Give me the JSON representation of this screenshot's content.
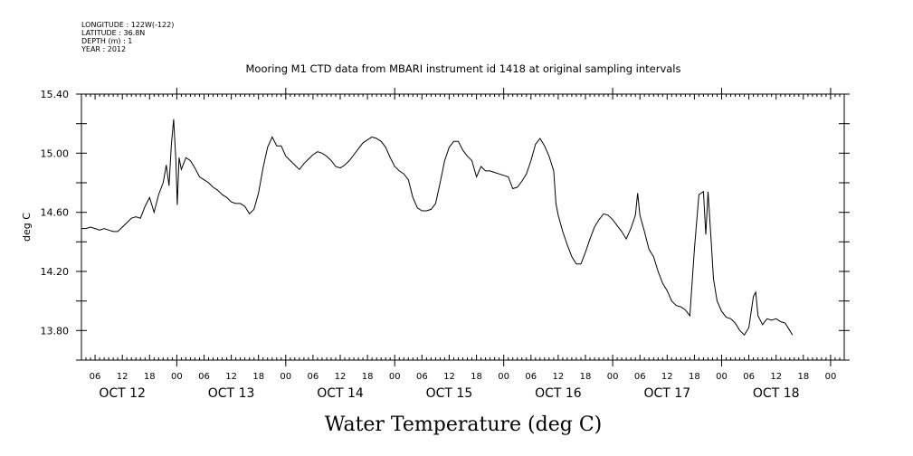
{
  "header": {
    "longitude": "LONGITUDE : 122W(-122)",
    "latitude": "LATITUDE : 36.8N",
    "depth": "DEPTH (m) : 1",
    "year": "YEAR : 2012"
  },
  "chart_data": {
    "type": "line",
    "title": "Mooring M1 CTD data from MBARI instrument id 1418 at original sampling intervals",
    "xlabel": "Water Temperature (deg C)",
    "ylabel": "deg C",
    "x_unit": "hours",
    "xlim": [
      0,
      168
    ],
    "ylim": [
      13.6,
      15.4
    ],
    "yticks": [
      13.8,
      14.2,
      14.6,
      15.0,
      15.4
    ],
    "ytick_labels": [
      "13.80",
      "14.20",
      "14.60",
      "15.00",
      "15.40"
    ],
    "hour_ticks": [
      {
        "t": 3,
        "label": "06"
      },
      {
        "t": 9,
        "label": "12"
      },
      {
        "t": 15,
        "label": "18"
      },
      {
        "t": 21,
        "label": "00"
      },
      {
        "t": 27,
        "label": "06"
      },
      {
        "t": 33,
        "label": "12"
      },
      {
        "t": 39,
        "label": "18"
      },
      {
        "t": 45,
        "label": "00"
      },
      {
        "t": 51,
        "label": "06"
      },
      {
        "t": 57,
        "label": "12"
      },
      {
        "t": 63,
        "label": "18"
      },
      {
        "t": 69,
        "label": "00"
      },
      {
        "t": 75,
        "label": "06"
      },
      {
        "t": 81,
        "label": "12"
      },
      {
        "t": 87,
        "label": "18"
      },
      {
        "t": 93,
        "label": "00"
      },
      {
        "t": 99,
        "label": "06"
      },
      {
        "t": 105,
        "label": "12"
      },
      {
        "t": 111,
        "label": "18"
      },
      {
        "t": 117,
        "label": "00"
      },
      {
        "t": 123,
        "label": "06"
      },
      {
        "t": 129,
        "label": "12"
      },
      {
        "t": 135,
        "label": "18"
      },
      {
        "t": 141,
        "label": "00"
      },
      {
        "t": 147,
        "label": "06"
      },
      {
        "t": 153,
        "label": "12"
      },
      {
        "t": 159,
        "label": "18"
      },
      {
        "t": 165,
        "label": "00"
      }
    ],
    "day_labels": [
      {
        "t": 9,
        "label": "OCT 12"
      },
      {
        "t": 33,
        "label": "OCT 13"
      },
      {
        "t": 57,
        "label": "OCT 14"
      },
      {
        "t": 81,
        "label": "OCT 15"
      },
      {
        "t": 105,
        "label": "OCT 16"
      },
      {
        "t": 129,
        "label": "OCT 17"
      },
      {
        "t": 153,
        "label": "OCT 18"
      }
    ],
    "series": [
      {
        "points": [
          [
            0,
            14.49
          ],
          [
            1,
            14.49
          ],
          [
            2,
            14.5
          ],
          [
            3,
            14.49
          ],
          [
            4,
            14.48
          ],
          [
            5,
            14.49
          ],
          [
            6,
            14.48
          ],
          [
            7,
            14.47
          ],
          [
            8,
            14.47
          ],
          [
            9,
            14.5
          ],
          [
            10,
            14.53
          ],
          [
            11,
            14.56
          ],
          [
            12,
            14.57
          ],
          [
            13,
            14.56
          ],
          [
            14,
            14.64
          ],
          [
            15,
            14.7
          ],
          [
            16,
            14.6
          ],
          [
            17,
            14.72
          ],
          [
            18,
            14.8
          ],
          [
            18.7,
            14.92
          ],
          [
            19.3,
            14.78
          ],
          [
            19.8,
            15.06
          ],
          [
            20.3,
            15.23
          ],
          [
            20.8,
            14.95
          ],
          [
            21.1,
            14.65
          ],
          [
            21.5,
            14.97
          ],
          [
            22,
            14.89
          ],
          [
            23,
            14.97
          ],
          [
            24,
            14.95
          ],
          [
            25,
            14.9
          ],
          [
            26,
            14.84
          ],
          [
            27,
            14.82
          ],
          [
            28,
            14.8
          ],
          [
            29,
            14.77
          ],
          [
            30,
            14.75
          ],
          [
            31,
            14.72
          ],
          [
            32,
            14.7
          ],
          [
            33,
            14.67
          ],
          [
            34,
            14.66
          ],
          [
            35,
            14.66
          ],
          [
            36,
            14.64
          ],
          [
            37,
            14.59
          ],
          [
            38,
            14.62
          ],
          [
            39,
            14.73
          ],
          [
            40,
            14.9
          ],
          [
            41,
            15.04
          ],
          [
            42,
            15.11
          ],
          [
            43,
            15.05
          ],
          [
            44,
            15.05
          ],
          [
            45,
            14.98
          ],
          [
            46,
            14.95
          ],
          [
            47,
            14.92
          ],
          [
            48,
            14.89
          ],
          [
            49,
            14.93
          ],
          [
            50,
            14.96
          ],
          [
            51,
            14.99
          ],
          [
            52,
            15.01
          ],
          [
            53,
            15.0
          ],
          [
            54,
            14.98
          ],
          [
            55,
            14.95
          ],
          [
            56,
            14.91
          ],
          [
            57,
            14.9
          ],
          [
            58,
            14.92
          ],
          [
            59,
            14.95
          ],
          [
            60,
            14.99
          ],
          [
            61,
            15.03
          ],
          [
            62,
            15.07
          ],
          [
            63,
            15.09
          ],
          [
            64,
            15.11
          ],
          [
            65,
            15.1
          ],
          [
            66,
            15.08
          ],
          [
            67,
            15.04
          ],
          [
            68,
            14.97
          ],
          [
            69,
            14.91
          ],
          [
            70,
            14.88
          ],
          [
            71,
            14.86
          ],
          [
            72,
            14.82
          ],
          [
            73,
            14.7
          ],
          [
            74,
            14.63
          ],
          [
            75,
            14.61
          ],
          [
            76,
            14.61
          ],
          [
            77,
            14.62
          ],
          [
            78,
            14.66
          ],
          [
            79,
            14.8
          ],
          [
            80,
            14.95
          ],
          [
            81,
            15.04
          ],
          [
            82,
            15.08
          ],
          [
            83,
            15.08
          ],
          [
            84,
            15.02
          ],
          [
            85,
            14.98
          ],
          [
            86,
            14.95
          ],
          [
            87,
            14.84
          ],
          [
            88,
            14.91
          ],
          [
            89,
            14.88
          ],
          [
            90,
            14.88
          ],
          [
            91,
            14.87
          ],
          [
            92,
            14.86
          ],
          [
            93,
            14.85
          ],
          [
            94,
            14.84
          ],
          [
            95,
            14.76
          ],
          [
            96,
            14.77
          ],
          [
            97,
            14.81
          ],
          [
            98,
            14.86
          ],
          [
            99,
            14.95
          ],
          [
            100,
            15.06
          ],
          [
            101,
            15.1
          ],
          [
            102,
            15.05
          ],
          [
            103,
            14.98
          ],
          [
            104,
            14.88
          ],
          [
            104.5,
            14.66
          ],
          [
            105,
            14.58
          ],
          [
            106,
            14.47
          ],
          [
            107,
            14.38
          ],
          [
            108,
            14.3
          ],
          [
            109,
            14.25
          ],
          [
            110,
            14.25
          ],
          [
            111,
            14.33
          ],
          [
            112,
            14.42
          ],
          [
            113,
            14.5
          ],
          [
            114,
            14.55
          ],
          [
            115,
            14.59
          ],
          [
            116,
            14.58
          ],
          [
            117,
            14.55
          ],
          [
            118,
            14.51
          ],
          [
            119,
            14.47
          ],
          [
            120,
            14.42
          ],
          [
            121,
            14.49
          ],
          [
            122,
            14.58
          ],
          [
            122.5,
            14.73
          ],
          [
            123,
            14.58
          ],
          [
            124,
            14.47
          ],
          [
            125,
            14.35
          ],
          [
            126,
            14.3
          ],
          [
            127,
            14.2
          ],
          [
            128,
            14.12
          ],
          [
            129,
            14.07
          ],
          [
            130,
            14.0
          ],
          [
            131,
            13.97
          ],
          [
            132,
            13.96
          ],
          [
            133,
            13.94
          ],
          [
            134,
            13.9
          ],
          [
            135,
            14.35
          ],
          [
            136,
            14.72
          ],
          [
            137,
            14.74
          ],
          [
            137.5,
            14.45
          ],
          [
            138,
            14.74
          ],
          [
            138.7,
            14.4
          ],
          [
            139.2,
            14.15
          ],
          [
            140,
            14.0
          ],
          [
            141,
            13.93
          ],
          [
            142,
            13.89
          ],
          [
            143,
            13.88
          ],
          [
            144,
            13.85
          ],
          [
            145,
            13.8
          ],
          [
            146,
            13.77
          ],
          [
            147,
            13.82
          ],
          [
            148,
            14.03
          ],
          [
            148.5,
            14.06
          ],
          [
            149,
            13.9
          ],
          [
            150,
            13.84
          ],
          [
            151,
            13.88
          ],
          [
            152,
            13.87
          ],
          [
            153,
            13.88
          ],
          [
            154,
            13.86
          ],
          [
            155,
            13.85
          ],
          [
            156,
            13.8
          ],
          [
            156.6,
            13.77
          ]
        ]
      }
    ]
  }
}
